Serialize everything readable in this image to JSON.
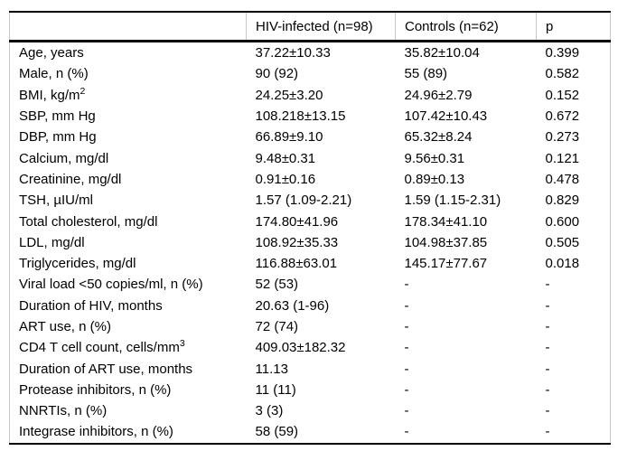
{
  "page": {
    "background_color": "#ffffff",
    "text_color": "#000000",
    "rule_color": "#000000",
    "grid_color": "#c9c9c9"
  },
  "table": {
    "columns": [
      "",
      "HIV-infected (n=98)",
      "Controls (n=62)",
      "p"
    ],
    "rows": [
      {
        "label": "Age, years",
        "hiv": "37.22±10.33",
        "controls": "35.82±10.04",
        "p": "0.399"
      },
      {
        "label": "Male, n (%)",
        "hiv": "90 (92)",
        "controls": "55 (89)",
        "p": "0.582"
      },
      {
        "label": "BMI, kg/m^2",
        "hiv": "24.25±3.20",
        "controls": "24.96±2.79",
        "p": "0.152"
      },
      {
        "label": "SBP, mm Hg",
        "hiv": "108.218±13.15",
        "controls": "107.42±10.43",
        "p": "0.672"
      },
      {
        "label": "DBP, mm Hg",
        "hiv": "66.89±9.10",
        "controls": "65.32±8.24",
        "p": "0.273"
      },
      {
        "label": "Calcium, mg/dl",
        "hiv": "9.48±0.31",
        "controls": "9.56±0.31",
        "p": "0.121"
      },
      {
        "label": "Creatinine, mg/dl",
        "hiv": "0.91±0.16",
        "controls": "0.89±0.13",
        "p": "0.478"
      },
      {
        "label": "TSH, µIU/ml",
        "hiv": "1.57 (1.09-2.21)",
        "controls": "1.59 (1.15-2.31)",
        "p": "0.829"
      },
      {
        "label": "Total cholesterol, mg/dl",
        "hiv": "174.80±41.96",
        "controls": "178.34±41.10",
        "p": "0.600"
      },
      {
        "label": "LDL, mg/dl",
        "hiv": "108.92±35.33",
        "controls": "104.98±37.85",
        "p": "0.505"
      },
      {
        "label": "Triglycerides, mg/dl",
        "hiv": "116.88±63.01",
        "controls": "145.17±77.67",
        "p": "0.018"
      },
      {
        "label": "Viral load <50 copies/ml, n (%)",
        "hiv": "52 (53)",
        "controls": "-",
        "p": "-"
      },
      {
        "label": "Duration of HIV, months",
        "hiv": "20.63 (1-96)",
        "controls": "-",
        "p": "-"
      },
      {
        "label": "ART use, n (%)",
        "hiv": "72 (74)",
        "controls": "-",
        "p": "-"
      },
      {
        "label": "CD4 T cell count, cells/mm^3",
        "hiv": "409.03±182.32",
        "controls": "-",
        "p": "-"
      },
      {
        "label": "Duration of ART use, months",
        "hiv": "11.13",
        "controls": "-",
        "p": "-"
      },
      {
        "label": "Protease inhibitors, n (%)",
        "hiv": "11 (11)",
        "controls": "-",
        "p": "-"
      },
      {
        "label": "NNRTIs, n (%)",
        "hiv": "3 (3)",
        "controls": "-",
        "p": "-"
      },
      {
        "label": "Integrase inhibitors, n (%)",
        "hiv": "58 (59)",
        "controls": "-",
        "p": "-"
      }
    ]
  }
}
